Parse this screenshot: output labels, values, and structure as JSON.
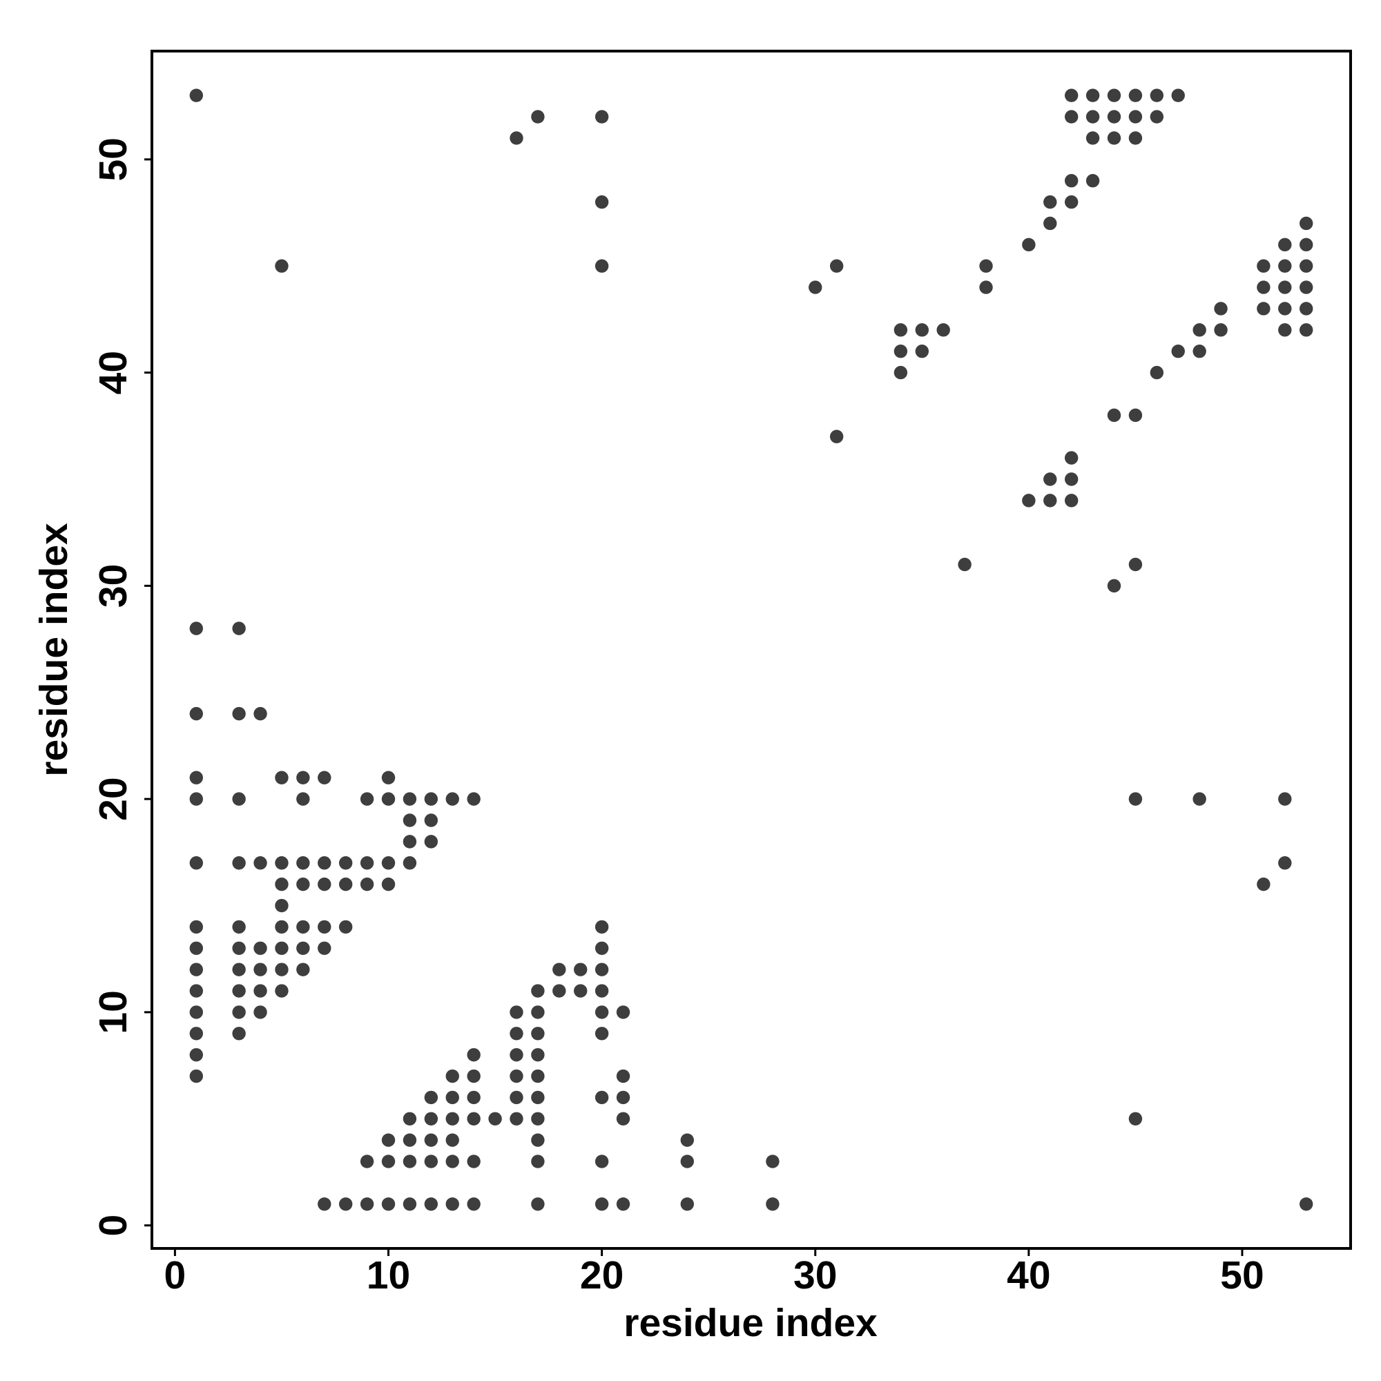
{
  "chart_data": {
    "type": "scatter",
    "xlabel": "residue index",
    "ylabel": "residue index",
    "xlim": [
      -1.08,
      55.08
    ],
    "ylim": [
      -1.08,
      55.08
    ],
    "xticks": [
      0,
      10,
      20,
      30,
      40,
      50
    ],
    "yticks": [
      0,
      10,
      20,
      30,
      40,
      50
    ],
    "color": "#2e2e2e",
    "x": [
      1,
      42,
      43,
      44,
      45,
      46,
      47,
      17,
      20,
      42,
      43,
      44,
      45,
      46,
      16,
      43,
      44,
      45,
      42,
      43,
      20,
      41,
      42,
      41,
      53,
      40,
      52,
      53,
      5,
      20,
      31,
      38,
      51,
      52,
      53,
      30,
      38,
      51,
      52,
      53,
      49,
      51,
      52,
      53,
      34,
      35,
      36,
      48,
      49,
      52,
      53,
      34,
      35,
      47,
      48,
      34,
      46,
      44,
      45,
      31,
      42,
      41,
      42,
      40,
      41,
      42,
      37,
      45,
      44,
      1,
      3,
      1,
      3,
      4,
      1,
      5,
      6,
      7,
      10,
      1,
      3,
      6,
      9,
      10,
      11,
      12,
      13,
      14,
      45,
      48,
      52,
      11,
      12,
      11,
      12,
      1,
      3,
      4,
      5,
      6,
      7,
      8,
      9,
      10,
      11,
      52,
      5,
      6,
      7,
      8,
      9,
      10,
      51,
      5,
      1,
      3,
      5,
      6,
      7,
      8,
      20,
      1,
      3,
      4,
      5,
      6,
      7,
      20,
      1,
      3,
      4,
      5,
      6,
      18,
      19,
      20,
      1,
      3,
      4,
      5,
      17,
      18,
      19,
      20,
      1,
      3,
      4,
      16,
      17,
      20,
      21,
      1,
      3,
      16,
      17,
      20,
      1,
      14,
      16,
      17,
      1,
      13,
      14,
      16,
      17,
      21,
      12,
      13,
      14,
      16,
      17,
      20,
      21,
      11,
      12,
      13,
      14,
      15,
      16,
      17,
      21,
      45,
      10,
      11,
      12,
      13,
      17,
      24,
      9,
      10,
      11,
      12,
      13,
      14,
      17,
      20,
      24,
      28,
      7,
      8,
      9,
      10,
      11,
      12,
      13,
      14,
      17,
      20,
      21,
      24,
      28,
      53
    ],
    "y": [
      53,
      53,
      53,
      53,
      53,
      53,
      53,
      52,
      52,
      52,
      52,
      52,
      52,
      52,
      51,
      51,
      51,
      51,
      49,
      49,
      48,
      48,
      48,
      47,
      47,
      46,
      46,
      46,
      45,
      45,
      45,
      45,
      45,
      45,
      45,
      44,
      44,
      44,
      44,
      44,
      43,
      43,
      43,
      43,
      42,
      42,
      42,
      42,
      42,
      42,
      42,
      41,
      41,
      41,
      41,
      40,
      40,
      38,
      38,
      37,
      36,
      35,
      35,
      34,
      34,
      34,
      31,
      31,
      30,
      28,
      28,
      24,
      24,
      24,
      21,
      21,
      21,
      21,
      21,
      20,
      20,
      20,
      20,
      20,
      20,
      20,
      20,
      20,
      20,
      20,
      20,
      19,
      19,
      18,
      18,
      17,
      17,
      17,
      17,
      17,
      17,
      17,
      17,
      17,
      17,
      17,
      16,
      16,
      16,
      16,
      16,
      16,
      16,
      15,
      14,
      14,
      14,
      14,
      14,
      14,
      14,
      13,
      13,
      13,
      13,
      13,
      13,
      13,
      12,
      12,
      12,
      12,
      12,
      12,
      12,
      12,
      11,
      11,
      11,
      11,
      11,
      11,
      11,
      11,
      10,
      10,
      10,
      10,
      10,
      10,
      10,
      9,
      9,
      9,
      9,
      9,
      8,
      8,
      8,
      8,
      7,
      7,
      7,
      7,
      7,
      7,
      6,
      6,
      6,
      6,
      6,
      6,
      6,
      5,
      5,
      5,
      5,
      5,
      5,
      5,
      5,
      5,
      4,
      4,
      4,
      4,
      4,
      4,
      3,
      3,
      3,
      3,
      3,
      3,
      3,
      3,
      3,
      3,
      1,
      1,
      1,
      1,
      1,
      1,
      1,
      1,
      1,
      1,
      1,
      1,
      1,
      1
    ]
  }
}
